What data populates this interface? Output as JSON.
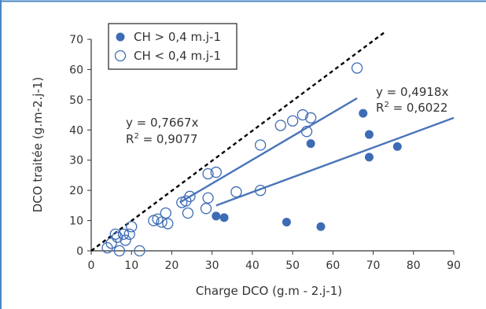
{
  "chart_data": {
    "type": "scatter",
    "xlabel": "Charge DCO (g.m - 2.j-1)",
    "ylabel": "DCO traitée (g.m-2.j-1)",
    "xlim": [
      0,
      90
    ],
    "ylim": [
      0,
      70
    ],
    "x_ticks": [
      0,
      10,
      20,
      30,
      40,
      50,
      60,
      70,
      80,
      90
    ],
    "y_ticks": [
      0,
      10,
      20,
      30,
      40,
      50,
      60,
      70
    ],
    "grid": false,
    "legend_position": "top-left",
    "series": [
      {
        "name": "CH > 0,4 m.j-1",
        "marker": "filled-circle",
        "color": "#3d6cb5",
        "points": [
          [
            31,
            11.5
          ],
          [
            33,
            11
          ],
          [
            48.5,
            9.5
          ],
          [
            54.5,
            35.5
          ],
          [
            57,
            8
          ],
          [
            67.5,
            45.5
          ],
          [
            69,
            38.5
          ],
          [
            69,
            31
          ],
          [
            76,
            34.5
          ]
        ]
      },
      {
        "name": "CH < 0,4 m.j-1",
        "marker": "open-circle",
        "color": "#3d6cb5",
        "points": [
          [
            4,
            1
          ],
          [
            5,
            2.5
          ],
          [
            6,
            5.5
          ],
          [
            6.5,
            4.5
          ],
          [
            7,
            0
          ],
          [
            8,
            5.5
          ],
          [
            8.5,
            3.5
          ],
          [
            9.5,
            5.5
          ],
          [
            10,
            8
          ],
          [
            12,
            0
          ],
          [
            15.5,
            10
          ],
          [
            16.5,
            10.5
          ],
          [
            17.5,
            9.5
          ],
          [
            18.5,
            12.5
          ],
          [
            19,
            9
          ],
          [
            22.5,
            16
          ],
          [
            23.5,
            16.5
          ],
          [
            24,
            12.5
          ],
          [
            24.5,
            18
          ],
          [
            28.5,
            14
          ],
          [
            29,
            25.5
          ],
          [
            29,
            17.5
          ],
          [
            31,
            26
          ],
          [
            36,
            19.5
          ],
          [
            42,
            20
          ],
          [
            42,
            35
          ],
          [
            47,
            41.5
          ],
          [
            50,
            43
          ],
          [
            52.5,
            45
          ],
          [
            53.5,
            39.5
          ],
          [
            54.5,
            44
          ],
          [
            66,
            60.5
          ]
        ]
      }
    ],
    "lines": [
      {
        "style": "dashed",
        "color": "#000000",
        "from": [
          0,
          0
        ],
        "to": [
          73,
          72.5
        ]
      },
      {
        "style": "solid",
        "color": "#4a74b8",
        "from": [
          31,
          15
        ],
        "to": [
          90,
          44
        ]
      },
      {
        "style": "solid",
        "color": "#4a74b8",
        "from": [
          22,
          16
        ],
        "to": [
          66,
          50.5
        ]
      }
    ],
    "annotations": {
      "eq_low": "y = 0,7667x",
      "r2_low_base": "R",
      "r2_low_exp": "2",
      "r2_low_val": " = 0,9077",
      "eq_high": "y = 0,4918x",
      "r2_high_base": "R",
      "r2_high_exp": "2",
      "r2_high_val": " = 0,6022"
    }
  }
}
